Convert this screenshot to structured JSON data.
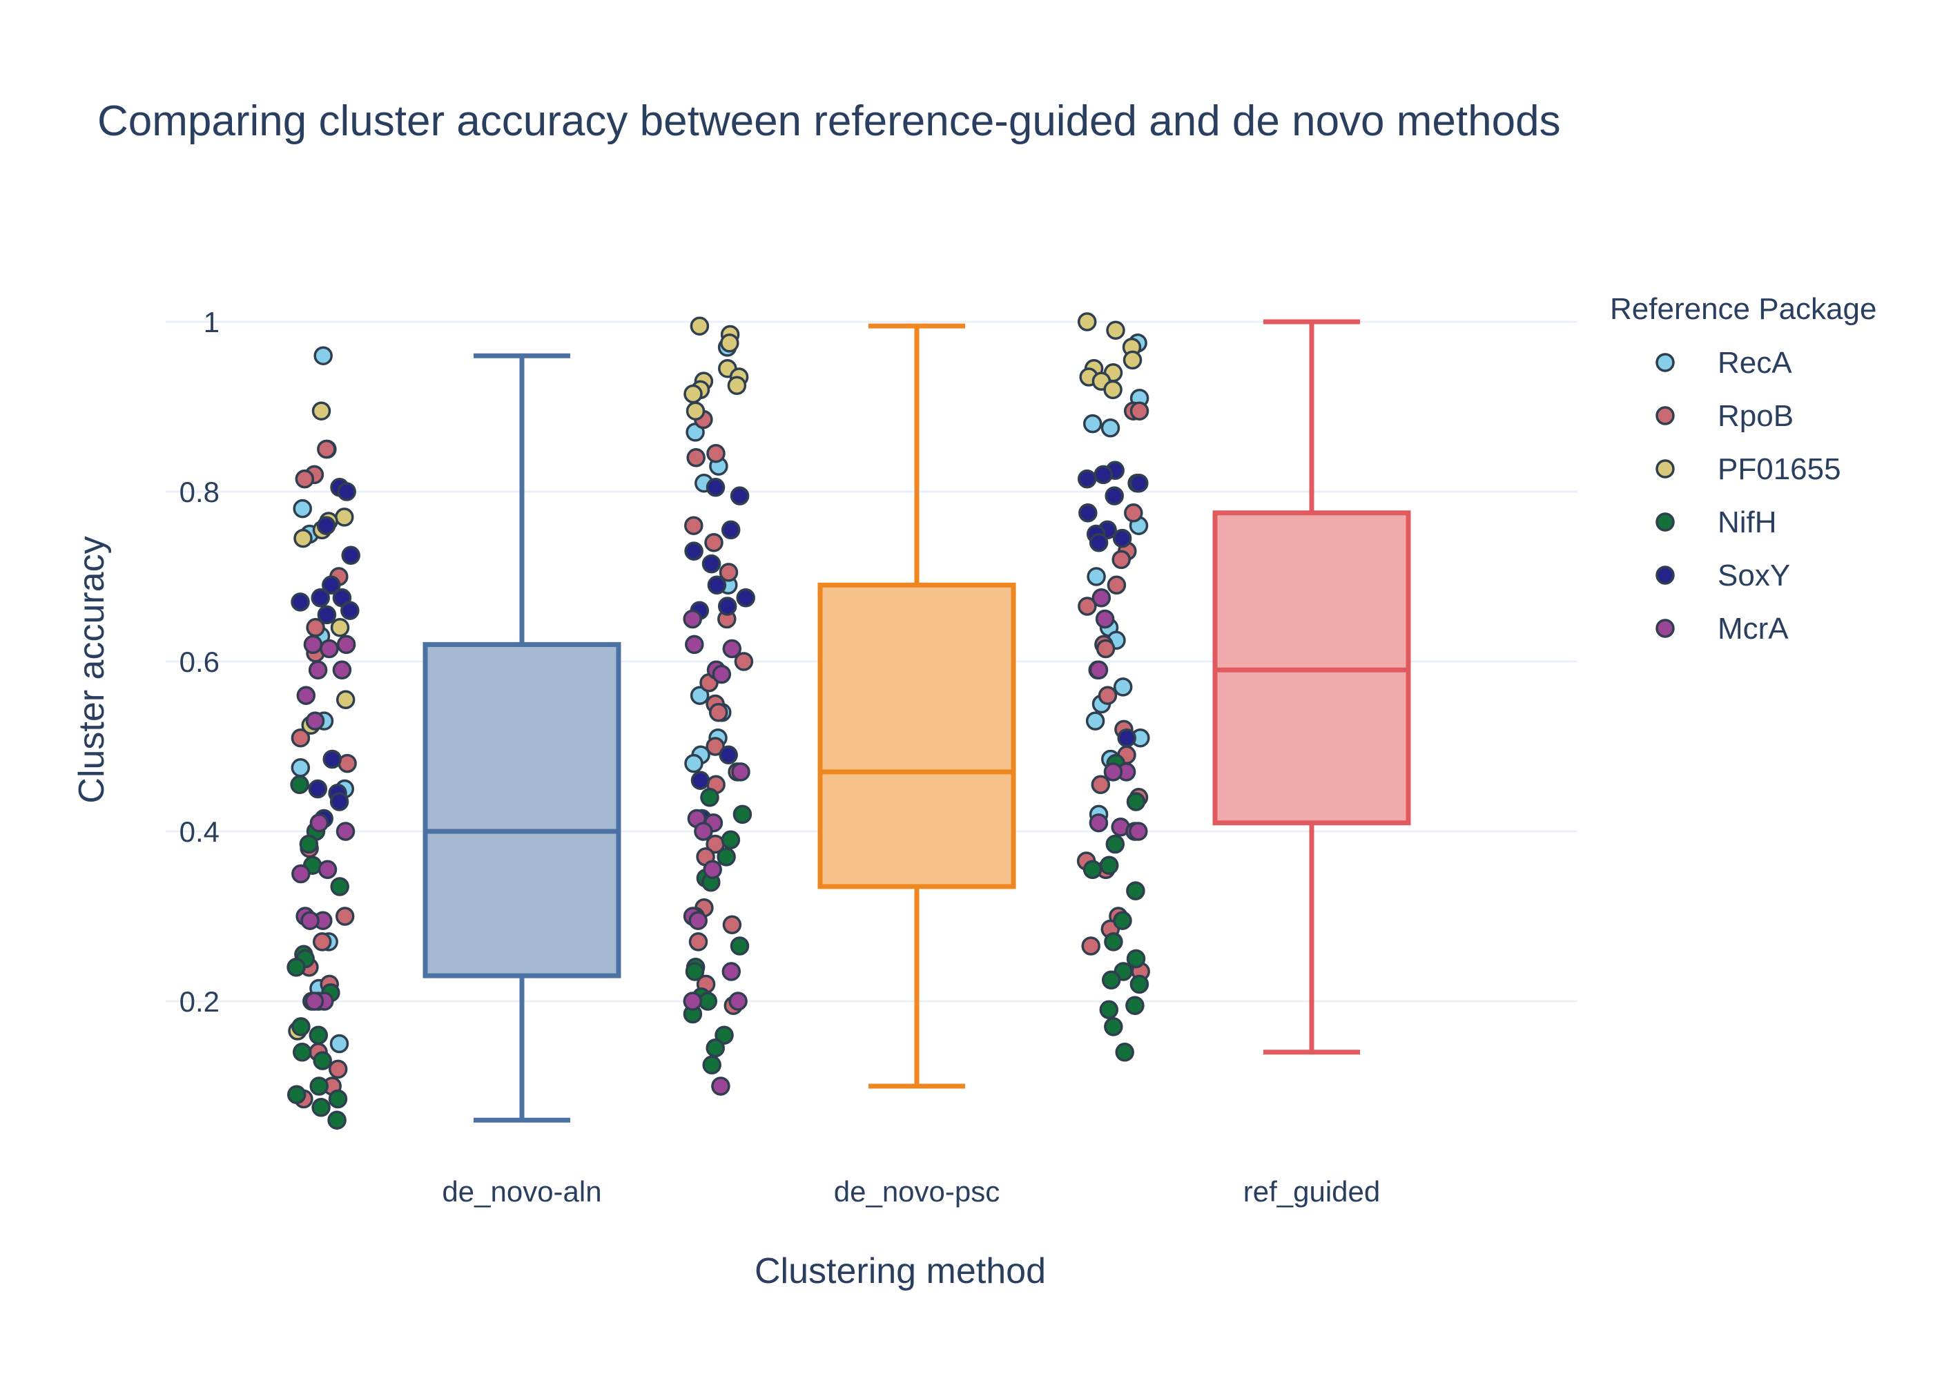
{
  "chart_data": {
    "type": "box",
    "title": "Comparing cluster accuracy between reference-guided and de novo methods",
    "xlabel": "Clustering method",
    "ylabel": "Cluster accuracy",
    "ylim": [
      0,
      1.1
    ],
    "yticks": [
      0.2,
      0.4,
      0.6,
      0.8,
      1
    ],
    "ytick_labels": [
      "0.2",
      "0.4",
      "0.6",
      "0.8",
      "1"
    ],
    "grid": true,
    "legend": {
      "title": "Reference Package",
      "position": "top-right"
    },
    "categories": [
      "de_novo-aln",
      "de_novo-psc",
      "ref_guided"
    ],
    "boxes": [
      {
        "name": "de_novo-aln",
        "color": "#4c72a4",
        "fill": "#a6b9d2",
        "min": 0.06,
        "q1": 0.23,
        "median": 0.4,
        "q3": 0.62,
        "max": 0.96
      },
      {
        "name": "de_novo-psc",
        "color": "#f0861f",
        "fill": "#f7c289",
        "min": 0.1,
        "q1": 0.335,
        "median": 0.47,
        "q3": 0.69,
        "max": 0.995
      },
      {
        "name": "ref_guided",
        "color": "#e05a5f",
        "fill": "#f0aaab",
        "min": 0.14,
        "q1": 0.41,
        "median": 0.59,
        "q3": 0.775,
        "max": 1.0
      }
    ],
    "series": [
      {
        "name": "RecA",
        "color": "#87ceeb",
        "points": {
          "de_novo-aln": [
            0.96,
            0.85,
            0.78,
            0.75,
            0.63,
            0.53,
            0.475,
            0.45,
            0.27,
            0.215,
            0.2,
            0.15
          ],
          "de_novo-psc": [
            0.97,
            0.87,
            0.83,
            0.81,
            0.69,
            0.56,
            0.54,
            0.51,
            0.49,
            0.48
          ],
          "ref_guided": [
            0.975,
            0.91,
            0.88,
            0.875,
            0.76,
            0.7,
            0.64,
            0.625,
            0.57,
            0.55,
            0.53,
            0.51,
            0.485,
            0.42
          ]
        }
      },
      {
        "name": "RpoB",
        "color": "#c96a72",
        "points": {
          "de_novo-aln": [
            0.85,
            0.82,
            0.815,
            0.7,
            0.64,
            0.61,
            0.51,
            0.48,
            0.38,
            0.3,
            0.27,
            0.24,
            0.22,
            0.14,
            0.12,
            0.1,
            0.085
          ],
          "de_novo-psc": [
            0.885,
            0.845,
            0.84,
            0.76,
            0.74,
            0.705,
            0.65,
            0.6,
            0.575,
            0.55,
            0.54,
            0.5,
            0.47,
            0.455,
            0.385,
            0.37,
            0.31,
            0.29,
            0.27,
            0.22,
            0.195
          ],
          "ref_guided": [
            0.895,
            0.895,
            0.81,
            0.775,
            0.73,
            0.72,
            0.69,
            0.665,
            0.62,
            0.615,
            0.59,
            0.56,
            0.52,
            0.49,
            0.455,
            0.44,
            0.365,
            0.355,
            0.3,
            0.285,
            0.265,
            0.235
          ]
        }
      },
      {
        "name": "PF01655",
        "color": "#d8c97a",
        "points": {
          "de_novo-aln": [
            0.895,
            0.77,
            0.765,
            0.755,
            0.745,
            0.64,
            0.555,
            0.525,
            0.165
          ],
          "de_novo-psc": [
            0.995,
            0.985,
            0.975,
            0.945,
            0.935,
            0.93,
            0.925,
            0.92,
            0.915,
            0.895
          ],
          "ref_guided": [
            1.0,
            0.99,
            0.97,
            0.955,
            0.945,
            0.94,
            0.935,
            0.93,
            0.92
          ]
        }
      },
      {
        "name": "NifH",
        "color": "#14703a",
        "points": {
          "de_novo-aln": [
            0.455,
            0.4,
            0.385,
            0.36,
            0.335,
            0.255,
            0.25,
            0.24,
            0.21,
            0.17,
            0.16,
            0.14,
            0.13,
            0.1,
            0.09,
            0.085,
            0.075,
            0.06
          ],
          "de_novo-psc": [
            0.44,
            0.42,
            0.39,
            0.37,
            0.345,
            0.34,
            0.3,
            0.265,
            0.24,
            0.235,
            0.205,
            0.2,
            0.185,
            0.16,
            0.145,
            0.125
          ],
          "ref_guided": [
            0.48,
            0.435,
            0.385,
            0.36,
            0.355,
            0.33,
            0.295,
            0.27,
            0.25,
            0.235,
            0.225,
            0.22,
            0.195,
            0.19,
            0.17,
            0.14
          ]
        }
      },
      {
        "name": "SoxY",
        "color": "#25238a",
        "points": {
          "de_novo-aln": [
            0.805,
            0.8,
            0.76,
            0.725,
            0.69,
            0.675,
            0.675,
            0.67,
            0.66,
            0.655,
            0.485,
            0.45,
            0.445,
            0.435,
            0.415
          ],
          "de_novo-psc": [
            0.805,
            0.795,
            0.755,
            0.73,
            0.715,
            0.69,
            0.675,
            0.665,
            0.66,
            0.49,
            0.46,
            0.415
          ],
          "ref_guided": [
            0.825,
            0.82,
            0.815,
            0.81,
            0.795,
            0.775,
            0.755,
            0.75,
            0.745,
            0.74,
            0.51
          ]
        }
      },
      {
        "name": "McrA",
        "color": "#9b4597",
        "points": {
          "de_novo-aln": [
            0.62,
            0.62,
            0.615,
            0.59,
            0.59,
            0.56,
            0.53,
            0.41,
            0.4,
            0.355,
            0.35,
            0.3,
            0.295,
            0.295,
            0.2,
            0.2,
            0.2
          ],
          "de_novo-psc": [
            0.65,
            0.62,
            0.615,
            0.59,
            0.585,
            0.47,
            0.415,
            0.41,
            0.4,
            0.355,
            0.3,
            0.295,
            0.235,
            0.2,
            0.2,
            0.1
          ],
          "ref_guided": [
            0.675,
            0.65,
            0.59,
            0.47,
            0.47,
            0.41,
            0.405,
            0.4,
            0.4
          ]
        }
      }
    ]
  }
}
